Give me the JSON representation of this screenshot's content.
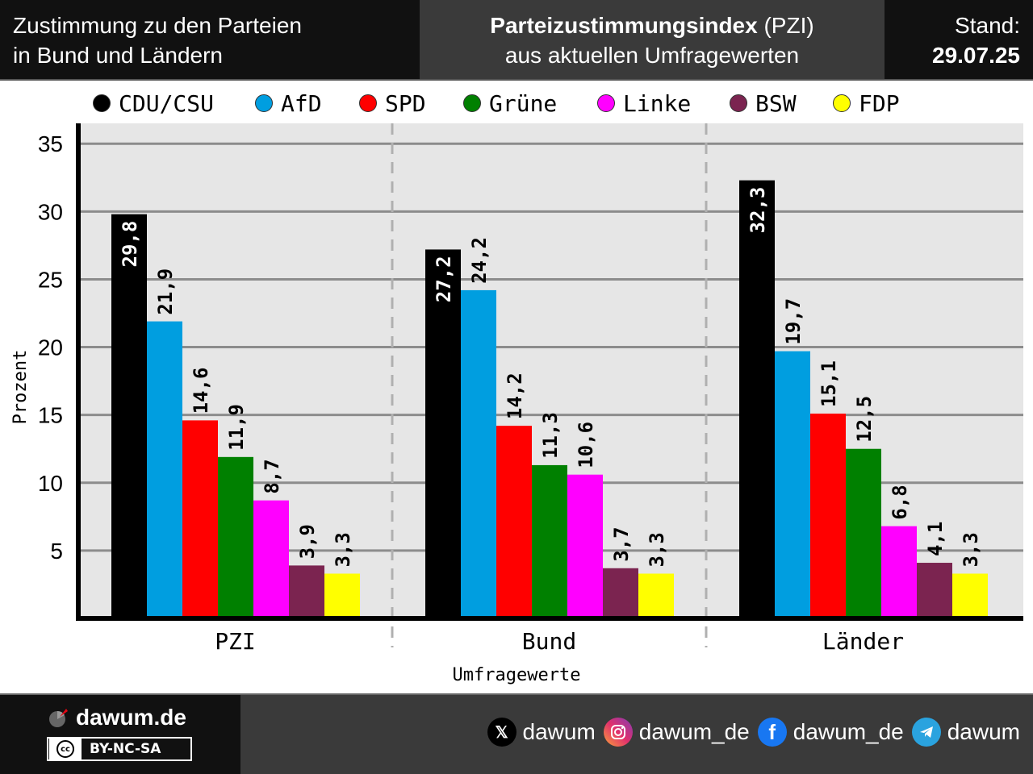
{
  "header": {
    "left_line1": "Zustimmung zu den Parteien",
    "left_line2": "in Bund und Ländern",
    "center_title_bold": "Parteizustimmungsindex",
    "center_title_rest": " (PZI)",
    "center_line2": "aus aktuellen Umfragewerten",
    "stand_label": "Stand:",
    "stand_date": "29.07.25"
  },
  "chart_data": {
    "type": "bar",
    "categories": [
      "PZI",
      "Bund",
      "Länder"
    ],
    "series": [
      {
        "name": "CDU/CSU",
        "color": "#000000",
        "values": [
          29.8,
          27.2,
          32.3
        ],
        "labels": [
          "29,8",
          "27,2",
          "32,3"
        ]
      },
      {
        "name": "AfD",
        "color": "#009ee0",
        "values": [
          21.9,
          24.2,
          19.7
        ],
        "labels": [
          "21,9",
          "24,2",
          "19,7"
        ]
      },
      {
        "name": "SPD",
        "color": "#ff0000",
        "values": [
          14.6,
          14.2,
          15.1
        ],
        "labels": [
          "14,6",
          "14,2",
          "15,1"
        ]
      },
      {
        "name": "Grüne",
        "color": "#008000",
        "values": [
          11.9,
          11.3,
          12.5
        ],
        "labels": [
          "11,9",
          "11,3",
          "12,5"
        ]
      },
      {
        "name": "Linke",
        "color": "#ff00ff",
        "values": [
          8.7,
          10.6,
          6.8
        ],
        "labels": [
          "8,7",
          "10,6",
          "6,8"
        ]
      },
      {
        "name": "BSW",
        "color": "#7b2450",
        "values": [
          3.9,
          3.7,
          4.1
        ],
        "labels": [
          "3,9",
          "3,7",
          "4,1"
        ]
      },
      {
        "name": "FDP",
        "color": "#ffff00",
        "values": [
          3.3,
          3.3,
          3.3
        ],
        "labels": [
          "3,3",
          "3,3",
          "3,3"
        ]
      }
    ],
    "xlabel": "Umfragewerte",
    "ylabel": "Prozent",
    "yticks": [
      5,
      10,
      15,
      20,
      25,
      30,
      35
    ],
    "ylim": [
      0,
      36.5
    ],
    "grid": true,
    "legend": "top"
  },
  "footer": {
    "brand": "dawum.de",
    "license": "BY-NC-SA",
    "license_icon": "cc",
    "socials": [
      {
        "icon": "x-icon",
        "handle": "dawum"
      },
      {
        "icon": "instagram-icon",
        "handle": "dawum_de"
      },
      {
        "icon": "facebook-icon",
        "handle": "dawum_de"
      },
      {
        "icon": "telegram-icon",
        "handle": "dawum"
      }
    ]
  }
}
